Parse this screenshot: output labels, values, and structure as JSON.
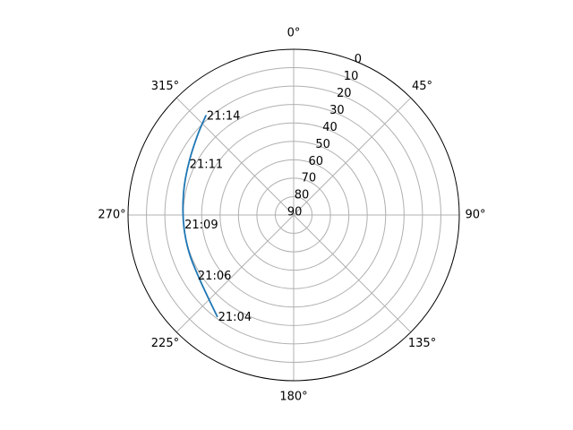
{
  "chart_data": {
    "type": "line",
    "projection": "polar",
    "theta_zero_location": "N",
    "theta_direction": "clockwise",
    "theta_ticks": [
      {
        "deg": 0,
        "label": "0°"
      },
      {
        "deg": 45,
        "label": "45°"
      },
      {
        "deg": 90,
        "label": "90°"
      },
      {
        "deg": 135,
        "label": "135°"
      },
      {
        "deg": 180,
        "label": "180°"
      },
      {
        "deg": 225,
        "label": "225°"
      },
      {
        "deg": 270,
        "label": "270°"
      },
      {
        "deg": 315,
        "label": "315°"
      }
    ],
    "r_axis": {
      "comment": "elevation in degrees; 90 at center, 0 at outer ring",
      "reversed": true,
      "range": [
        90,
        0
      ],
      "ticks": [
        0,
        10,
        20,
        30,
        40,
        50,
        60,
        70,
        80,
        90
      ],
      "tick_labels": [
        "0",
        "10",
        "20",
        "30",
        "40",
        "50",
        "60",
        "70",
        "80",
        "90"
      ],
      "label_angle_deg": 22.5
    },
    "grid": true,
    "series": [
      {
        "color": "#1f77b4",
        "points": [
          {
            "az": 217,
            "el": 21
          },
          {
            "az": 225,
            "el": 25
          },
          {
            "az": 235,
            "el": 28
          },
          {
            "az": 248,
            "el": 29.5
          },
          {
            "az": 260,
            "el": 30
          },
          {
            "az": 272,
            "el": 29.8
          },
          {
            "az": 285,
            "el": 28.5
          },
          {
            "az": 298,
            "el": 26
          },
          {
            "az": 310,
            "el": 22
          },
          {
            "az": 318.5,
            "el": 18
          }
        ]
      }
    ],
    "annotations": [
      {
        "text": "21:04",
        "az": 217,
        "el": 21
      },
      {
        "text": "21:06",
        "az": 238,
        "el": 28
      },
      {
        "text": "21:09",
        "az": 265,
        "el": 30
      },
      {
        "text": "21:11",
        "az": 296,
        "el": 26.5
      },
      {
        "text": "21:14",
        "az": 318.5,
        "el": 18
      }
    ]
  }
}
